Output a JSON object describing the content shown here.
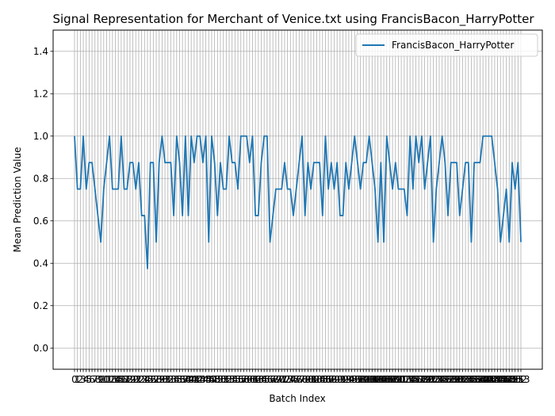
{
  "chart_data": {
    "type": "line",
    "title": "Signal Representation for Merchant of Venice.txt using FrancisBacon_HarryPotter",
    "xlabel": "Batch Index",
    "ylabel": "Mean Prediction Value",
    "ylim": [
      -0.1,
      1.5
    ],
    "yticks": [
      "0.0",
      "0.2",
      "0.4",
      "0.6",
      "0.8",
      "1.0",
      "1.2",
      "1.4"
    ],
    "grid": true,
    "legend": {
      "placement": "top-right"
    },
    "series": [
      {
        "name": "FrancisBacon_HarryPotter",
        "color": "#1f77b4",
        "values": [
          1.0,
          0.75,
          0.75,
          1.0,
          0.75,
          0.875,
          0.875,
          0.75,
          0.625,
          0.5,
          0.75,
          0.875,
          1.0,
          0.75,
          0.75,
          0.75,
          1.0,
          0.75,
          0.75,
          0.875,
          0.875,
          0.75,
          0.875,
          0.625,
          0.625,
          0.375,
          0.875,
          0.875,
          0.5,
          0.875,
          1.0,
          0.875,
          0.875,
          0.875,
          0.625,
          1.0,
          0.875,
          0.625,
          1.0,
          0.625,
          1.0,
          0.875,
          1.0,
          1.0,
          0.875,
          1.0,
          0.5,
          1.0,
          0.875,
          0.625,
          0.875,
          0.75,
          0.75,
          1.0,
          0.875,
          0.875,
          0.75,
          1.0,
          1.0,
          1.0,
          0.875,
          1.0,
          0.625,
          0.625,
          0.875,
          1.0,
          1.0,
          0.5,
          0.625,
          0.75,
          0.75,
          0.75,
          0.875,
          0.75,
          0.75,
          0.625,
          0.75,
          0.875,
          1.0,
          0.625,
          0.875,
          0.75,
          0.875,
          0.875,
          0.875,
          0.625,
          1.0,
          0.75,
          0.875,
          0.75,
          0.875,
          0.625,
          0.625,
          0.875,
          0.75,
          0.875,
          1.0,
          0.875,
          0.75,
          0.875,
          0.875,
          1.0,
          0.875,
          0.75,
          0.5,
          0.875,
          0.5,
          1.0,
          0.875,
          0.75,
          0.875,
          0.75,
          0.75,
          0.75,
          0.625,
          1.0,
          0.75,
          1.0,
          0.875,
          1.0,
          0.75,
          0.875,
          1.0,
          0.5,
          0.75,
          0.875,
          1.0,
          0.875,
          0.625,
          0.875,
          0.875,
          0.875,
          0.625,
          0.75,
          0.875,
          0.875,
          0.5,
          0.875,
          0.875,
          0.875,
          1.0,
          1.0,
          1.0,
          1.0,
          0.875,
          0.75,
          0.5,
          0.625,
          0.75,
          0.5,
          0.875,
          0.75,
          0.875,
          0.5
        ]
      }
    ]
  }
}
